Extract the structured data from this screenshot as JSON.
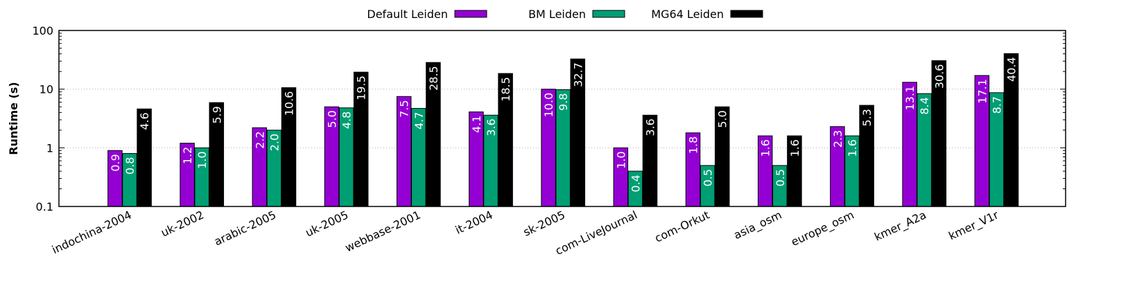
{
  "chart_data": {
    "type": "bar",
    "ylabel": "Runtime (s)",
    "yscale": "log",
    "ylim": [
      0.1,
      100
    ],
    "yticks": [
      "0.1",
      "1",
      "10",
      "100"
    ],
    "grid": true,
    "legend_position": "top-center",
    "categories": [
      "indochina-2004",
      "uk-2002",
      "arabic-2005",
      "uk-2005",
      "webbase-2001",
      "it-2004",
      "sk-2005",
      "com-LiveJournal",
      "com-Orkut",
      "asia_osm",
      "europe_osm",
      "kmer_A2a",
      "kmer_V1r"
    ],
    "series": [
      {
        "name": "Default Leiden",
        "color": "#9400d3",
        "label_color": "#ffffff",
        "values": [
          0.9,
          1.2,
          2.2,
          5.0,
          7.5,
          4.1,
          10.0,
          1.0,
          1.8,
          1.6,
          2.3,
          13.1,
          17.1
        ],
        "labels": [
          "0.9",
          "1.2",
          "2.2",
          "5.0",
          "7.5",
          "4.1",
          "10.0",
          "1.0",
          "1.8",
          "1.6",
          "2.3",
          "13.1",
          "17.1"
        ]
      },
      {
        "name": "BM Leiden",
        "color": "#009e73",
        "label_color": "#ffffff",
        "values": [
          0.8,
          1.0,
          2.0,
          4.8,
          4.7,
          3.6,
          9.8,
          0.4,
          0.5,
          0.5,
          1.6,
          8.4,
          8.7
        ],
        "labels": [
          "0.8",
          "1.0",
          "2.0",
          "4.8",
          "4.7",
          "3.6",
          "9.8",
          "0.4",
          "0.5",
          "0.5",
          "1.6",
          "8.4",
          "8.7"
        ]
      },
      {
        "name": "MG64 Leiden",
        "color": "#000000",
        "label_color": "#ffffff",
        "values": [
          4.6,
          5.9,
          10.6,
          19.5,
          28.5,
          18.5,
          32.7,
          3.6,
          5.0,
          1.6,
          5.3,
          30.6,
          40.4
        ],
        "labels": [
          "4.6",
          "5.9",
          "10.6",
          "19.5",
          "28.5",
          "18.5",
          "32.7",
          "3.6",
          "5.0",
          "1.6",
          "5.3",
          "30.6",
          "40.4"
        ]
      }
    ]
  }
}
